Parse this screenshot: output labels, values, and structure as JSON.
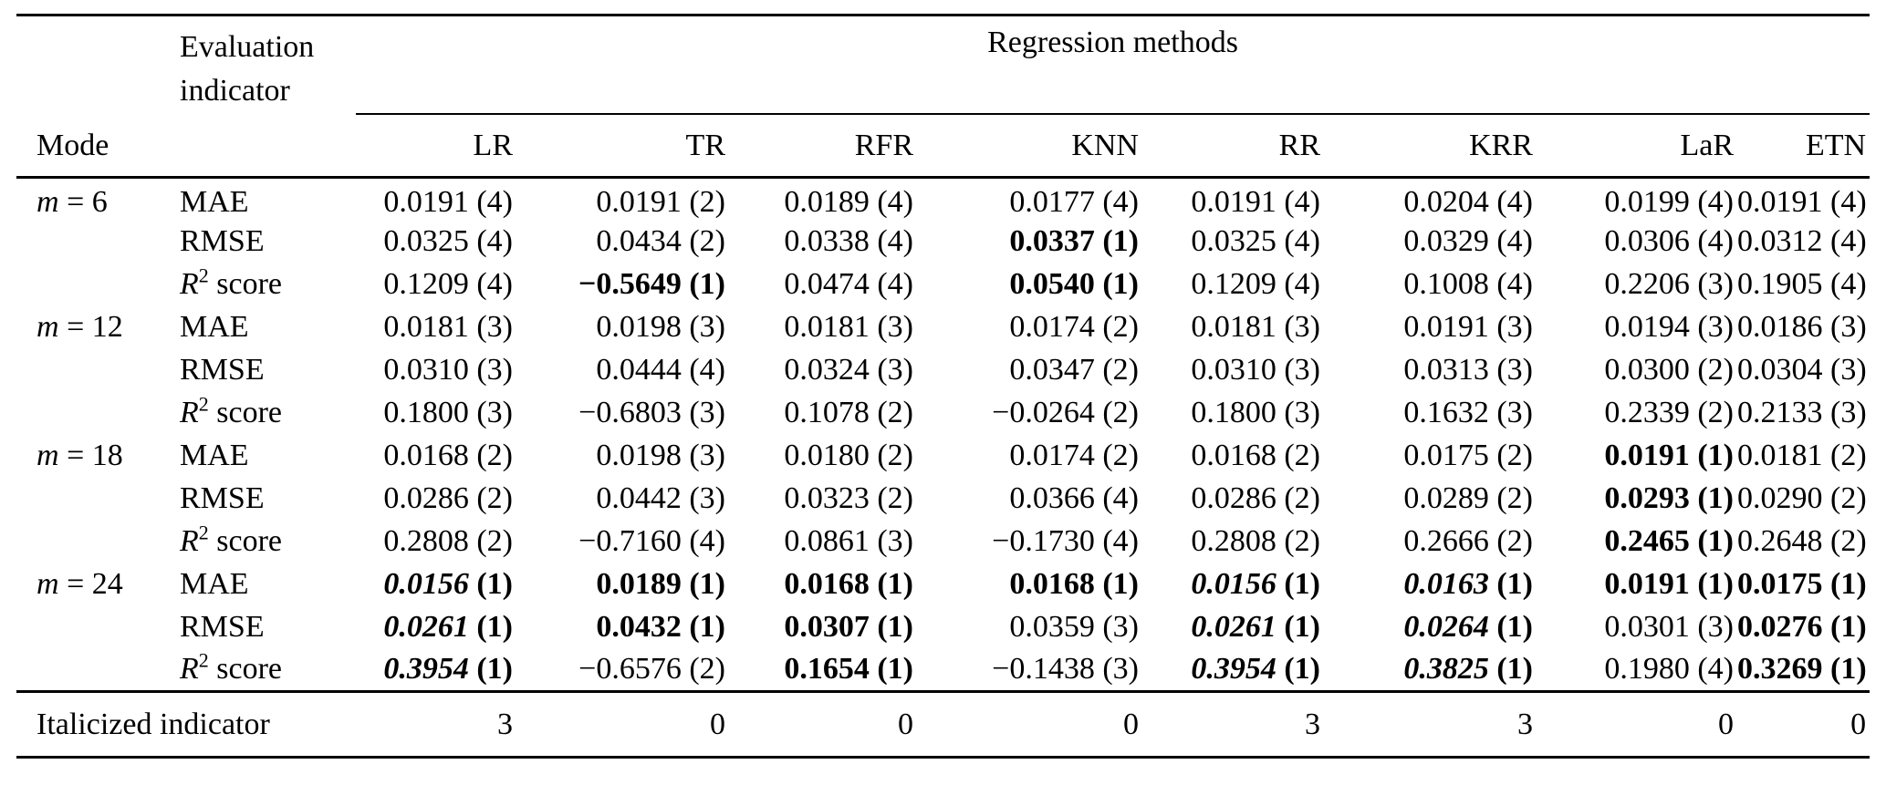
{
  "page": {
    "background_color": "#ffffff",
    "text_color": "#000000"
  },
  "table": {
    "mode_header": "Mode",
    "eval_header": [
      "Evaluation",
      "indicator"
    ],
    "group_header": "Regression methods",
    "methods": [
      "LR",
      "TR",
      "RFR",
      "KNN",
      "RR",
      "KRR",
      "LaR",
      "ETN"
    ],
    "indicators": [
      {
        "label": "MAE"
      },
      {
        "label": "RMSE"
      },
      {
        "label": "score",
        "math_var": "R",
        "sup": "2"
      }
    ],
    "cell_format": "each cell = [value, rank, style] where style n=normal, b=bold, bi=bold-italic",
    "groups": [
      {
        "mode_var": "m",
        "mode_text": "= 6",
        "rows": [
          {
            "indicator": 0,
            "cells": [
              [
                "0.0191",
                "4",
                "n"
              ],
              [
                "0.0191",
                "2",
                "n"
              ],
              [
                "0.0189",
                "4",
                "n"
              ],
              [
                "0.0177",
                "4",
                "n"
              ],
              [
                "0.0191",
                "4",
                "n"
              ],
              [
                "0.0204",
                "4",
                "n"
              ],
              [
                "0.0199",
                "4",
                "n"
              ],
              [
                "0.0191",
                "4",
                "n"
              ]
            ]
          },
          {
            "indicator": 1,
            "cells": [
              [
                "0.0325",
                "4",
                "n"
              ],
              [
                "0.0434",
                "2",
                "n"
              ],
              [
                "0.0338",
                "4",
                "n"
              ],
              [
                "0.0337",
                "1",
                "b"
              ],
              [
                "0.0325",
                "4",
                "n"
              ],
              [
                "0.0329",
                "4",
                "n"
              ],
              [
                "0.0306",
                "4",
                "n"
              ],
              [
                "0.0312",
                "4",
                "n"
              ]
            ]
          },
          {
            "indicator": 2,
            "cells": [
              [
                "0.1209",
                "4",
                "n"
              ],
              [
                "−0.5649",
                "1",
                "b"
              ],
              [
                "0.0474",
                "4",
                "n"
              ],
              [
                "0.0540",
                "1",
                "b"
              ],
              [
                "0.1209",
                "4",
                "n"
              ],
              [
                "0.1008",
                "4",
                "n"
              ],
              [
                "0.2206",
                "3",
                "n"
              ],
              [
                "0.1905",
                "4",
                "n"
              ]
            ]
          }
        ]
      },
      {
        "mode_var": "m",
        "mode_text": "= 12",
        "rows": [
          {
            "indicator": 0,
            "cells": [
              [
                "0.0181",
                "3",
                "n"
              ],
              [
                "0.0198",
                "3",
                "n"
              ],
              [
                "0.0181",
                "3",
                "n"
              ],
              [
                "0.0174",
                "2",
                "n"
              ],
              [
                "0.0181",
                "3",
                "n"
              ],
              [
                "0.0191",
                "3",
                "n"
              ],
              [
                "0.0194",
                "3",
                "n"
              ],
              [
                "0.0186",
                "3",
                "n"
              ]
            ]
          },
          {
            "indicator": 1,
            "cells": [
              [
                "0.0310",
                "3",
                "n"
              ],
              [
                "0.0444",
                "4",
                "n"
              ],
              [
                "0.0324",
                "3",
                "n"
              ],
              [
                "0.0347",
                "2",
                "n"
              ],
              [
                "0.0310",
                "3",
                "n"
              ],
              [
                "0.0313",
                "3",
                "n"
              ],
              [
                "0.0300",
                "2",
                "n"
              ],
              [
                "0.0304",
                "3",
                "n"
              ]
            ]
          },
          {
            "indicator": 2,
            "cells": [
              [
                "0.1800",
                "3",
                "n"
              ],
              [
                "−0.6803",
                "3",
                "n"
              ],
              [
                "0.1078",
                "2",
                "n"
              ],
              [
                "−0.0264",
                "2",
                "n"
              ],
              [
                "0.1800",
                "3",
                "n"
              ],
              [
                "0.1632",
                "3",
                "n"
              ],
              [
                "0.2339",
                "2",
                "n"
              ],
              [
                "0.2133",
                "3",
                "n"
              ]
            ]
          }
        ]
      },
      {
        "mode_var": "m",
        "mode_text": "= 18",
        "rows": [
          {
            "indicator": 0,
            "cells": [
              [
                "0.0168",
                "2",
                "n"
              ],
              [
                "0.0198",
                "3",
                "n"
              ],
              [
                "0.0180",
                "2",
                "n"
              ],
              [
                "0.0174",
                "2",
                "n"
              ],
              [
                "0.0168",
                "2",
                "n"
              ],
              [
                "0.0175",
                "2",
                "n"
              ],
              [
                "0.0191",
                "1",
                "b"
              ],
              [
                "0.0181",
                "2",
                "n"
              ]
            ]
          },
          {
            "indicator": 1,
            "cells": [
              [
                "0.0286",
                "2",
                "n"
              ],
              [
                "0.0442",
                "3",
                "n"
              ],
              [
                "0.0323",
                "2",
                "n"
              ],
              [
                "0.0366",
                "4",
                "n"
              ],
              [
                "0.0286",
                "2",
                "n"
              ],
              [
                "0.0289",
                "2",
                "n"
              ],
              [
                "0.0293",
                "1",
                "b"
              ],
              [
                "0.0290",
                "2",
                "n"
              ]
            ]
          },
          {
            "indicator": 2,
            "cells": [
              [
                "0.2808",
                "2",
                "n"
              ],
              [
                "−0.7160",
                "4",
                "n"
              ],
              [
                "0.0861",
                "3",
                "n"
              ],
              [
                "−0.1730",
                "4",
                "n"
              ],
              [
                "0.2808",
                "2",
                "n"
              ],
              [
                "0.2666",
                "2",
                "n"
              ],
              [
                "0.2465",
                "1",
                "b"
              ],
              [
                "0.2648",
                "2",
                "n"
              ]
            ]
          }
        ]
      },
      {
        "mode_var": "m",
        "mode_text": "= 24",
        "rows": [
          {
            "indicator": 0,
            "cells": [
              [
                "0.0156",
                "1",
                "bi"
              ],
              [
                "0.0189",
                "1",
                "b"
              ],
              [
                "0.0168",
                "1",
                "b"
              ],
              [
                "0.0168",
                "1",
                "b"
              ],
              [
                "0.0156",
                "1",
                "bi"
              ],
              [
                "0.0163",
                "1",
                "bi"
              ],
              [
                "0.0191",
                "1",
                "b"
              ],
              [
                "0.0175",
                "1",
                "b"
              ]
            ]
          },
          {
            "indicator": 1,
            "cells": [
              [
                "0.0261",
                "1",
                "bi"
              ],
              [
                "0.0432",
                "1",
                "b"
              ],
              [
                "0.0307",
                "1",
                "b"
              ],
              [
                "0.0359",
                "3",
                "n"
              ],
              [
                "0.0261",
                "1",
                "bi"
              ],
              [
                "0.0264",
                "1",
                "bi"
              ],
              [
                "0.0301",
                "3",
                "n"
              ],
              [
                "0.0276",
                "1",
                "b"
              ]
            ]
          },
          {
            "indicator": 2,
            "cells": [
              [
                "0.3954",
                "1",
                "bi"
              ],
              [
                "−0.6576",
                "2",
                "n"
              ],
              [
                "0.1654",
                "1",
                "b"
              ],
              [
                "−0.1438",
                "3",
                "n"
              ],
              [
                "0.3954",
                "1",
                "bi"
              ],
              [
                "0.3825",
                "1",
                "bi"
              ],
              [
                "0.1980",
                "4",
                "n"
              ],
              [
                "0.3269",
                "1",
                "b"
              ]
            ]
          }
        ]
      }
    ],
    "footer": {
      "label": "Italicized indicator",
      "values": [
        "3",
        "0",
        "0",
        "0",
        "3",
        "3",
        "0",
        "0"
      ]
    }
  }
}
